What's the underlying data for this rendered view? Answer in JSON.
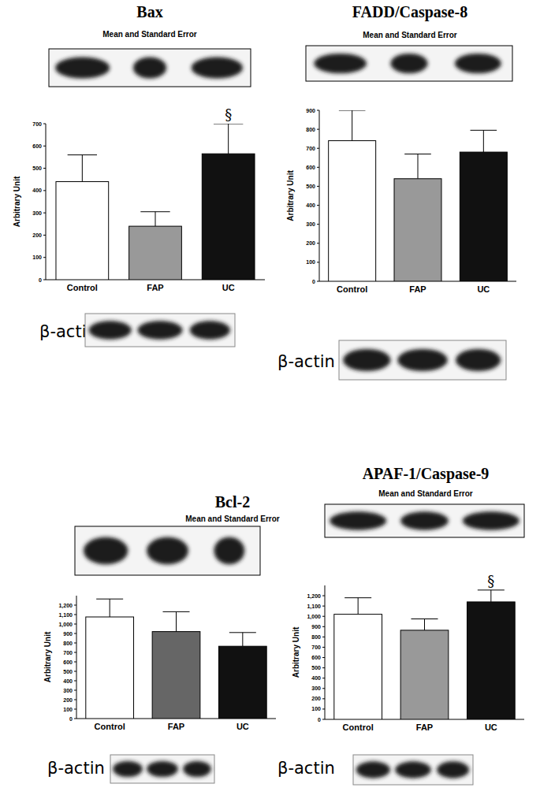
{
  "chart_data": [
    {
      "type": "bar",
      "title": "Bax",
      "subtitle": "Mean and Standard Error",
      "y_label": "Arbitrary Unit",
      "categories": [
        "Control",
        "FAP",
        "UC"
      ],
      "values": [
        440,
        240,
        565
      ],
      "errors": [
        120,
        65,
        135
      ],
      "colors": [
        "#ffffff",
        "#999999",
        "#111111"
      ],
      "ylim": [
        0,
        700
      ],
      "yticks": [
        0,
        100,
        200,
        300,
        400,
        500,
        600,
        700
      ],
      "annotations": [
        {
          "text": "§",
          "category": "UC"
        }
      ],
      "caption": "β-actin"
    },
    {
      "type": "bar",
      "title": "FADD/Caspase-8",
      "subtitle": "Mean and Standard Error",
      "y_label": "Arbitrary Unit",
      "categories": [
        "Control",
        "FAP",
        "UC"
      ],
      "values": [
        740,
        540,
        680
      ],
      "errors": [
        160,
        130,
        115
      ],
      "colors": [
        "#ffffff",
        "#999999",
        "#111111"
      ],
      "ylim": [
        0,
        900
      ],
      "yticks": [
        0,
        100,
        200,
        300,
        400,
        500,
        600,
        700,
        800,
        900
      ],
      "caption": "β-actin"
    },
    {
      "type": "bar",
      "title": "Bcl-2",
      "subtitle": "Mean and Standard Error",
      "y_label": "Arbitrary Unit",
      "categories": [
        "Control",
        "FAP",
        "UC"
      ],
      "values": [
        1075,
        920,
        765
      ],
      "errors": [
        190,
        210,
        145
      ],
      "colors": [
        "#ffffff",
        "#666666",
        "#111111"
      ],
      "ylim": [
        0,
        1300
      ],
      "yticks": [
        0,
        100,
        200,
        300,
        400,
        500,
        600,
        700,
        800,
        900,
        {
          "value": 1000,
          "label": "1,000"
        },
        {
          "value": 1100,
          "label": "1,100"
        },
        {
          "value": 1200,
          "label": "1,200"
        }
      ],
      "caption": "β-actin"
    },
    {
      "type": "bar",
      "title": "APAF-1/Caspase-9",
      "subtitle": "Mean and Standard Error",
      "y_label": "Arbitrary Unit",
      "categories": [
        "Control",
        "FAP",
        "UC"
      ],
      "values": [
        1020,
        865,
        1140
      ],
      "errors": [
        160,
        110,
        115
      ],
      "colors": [
        "#ffffff",
        "#999999",
        "#111111"
      ],
      "ylim": [
        0,
        1300
      ],
      "yticks": [
        0,
        100,
        200,
        300,
        400,
        500,
        600,
        700,
        800,
        900,
        {
          "value": 1000,
          "label": "1,000"
        },
        {
          "value": 1100,
          "label": "1,100"
        },
        {
          "value": 1200,
          "label": "1,200"
        }
      ],
      "annotations": [
        {
          "text": "§",
          "category": "UC"
        }
      ],
      "caption": "β-actin"
    }
  ]
}
